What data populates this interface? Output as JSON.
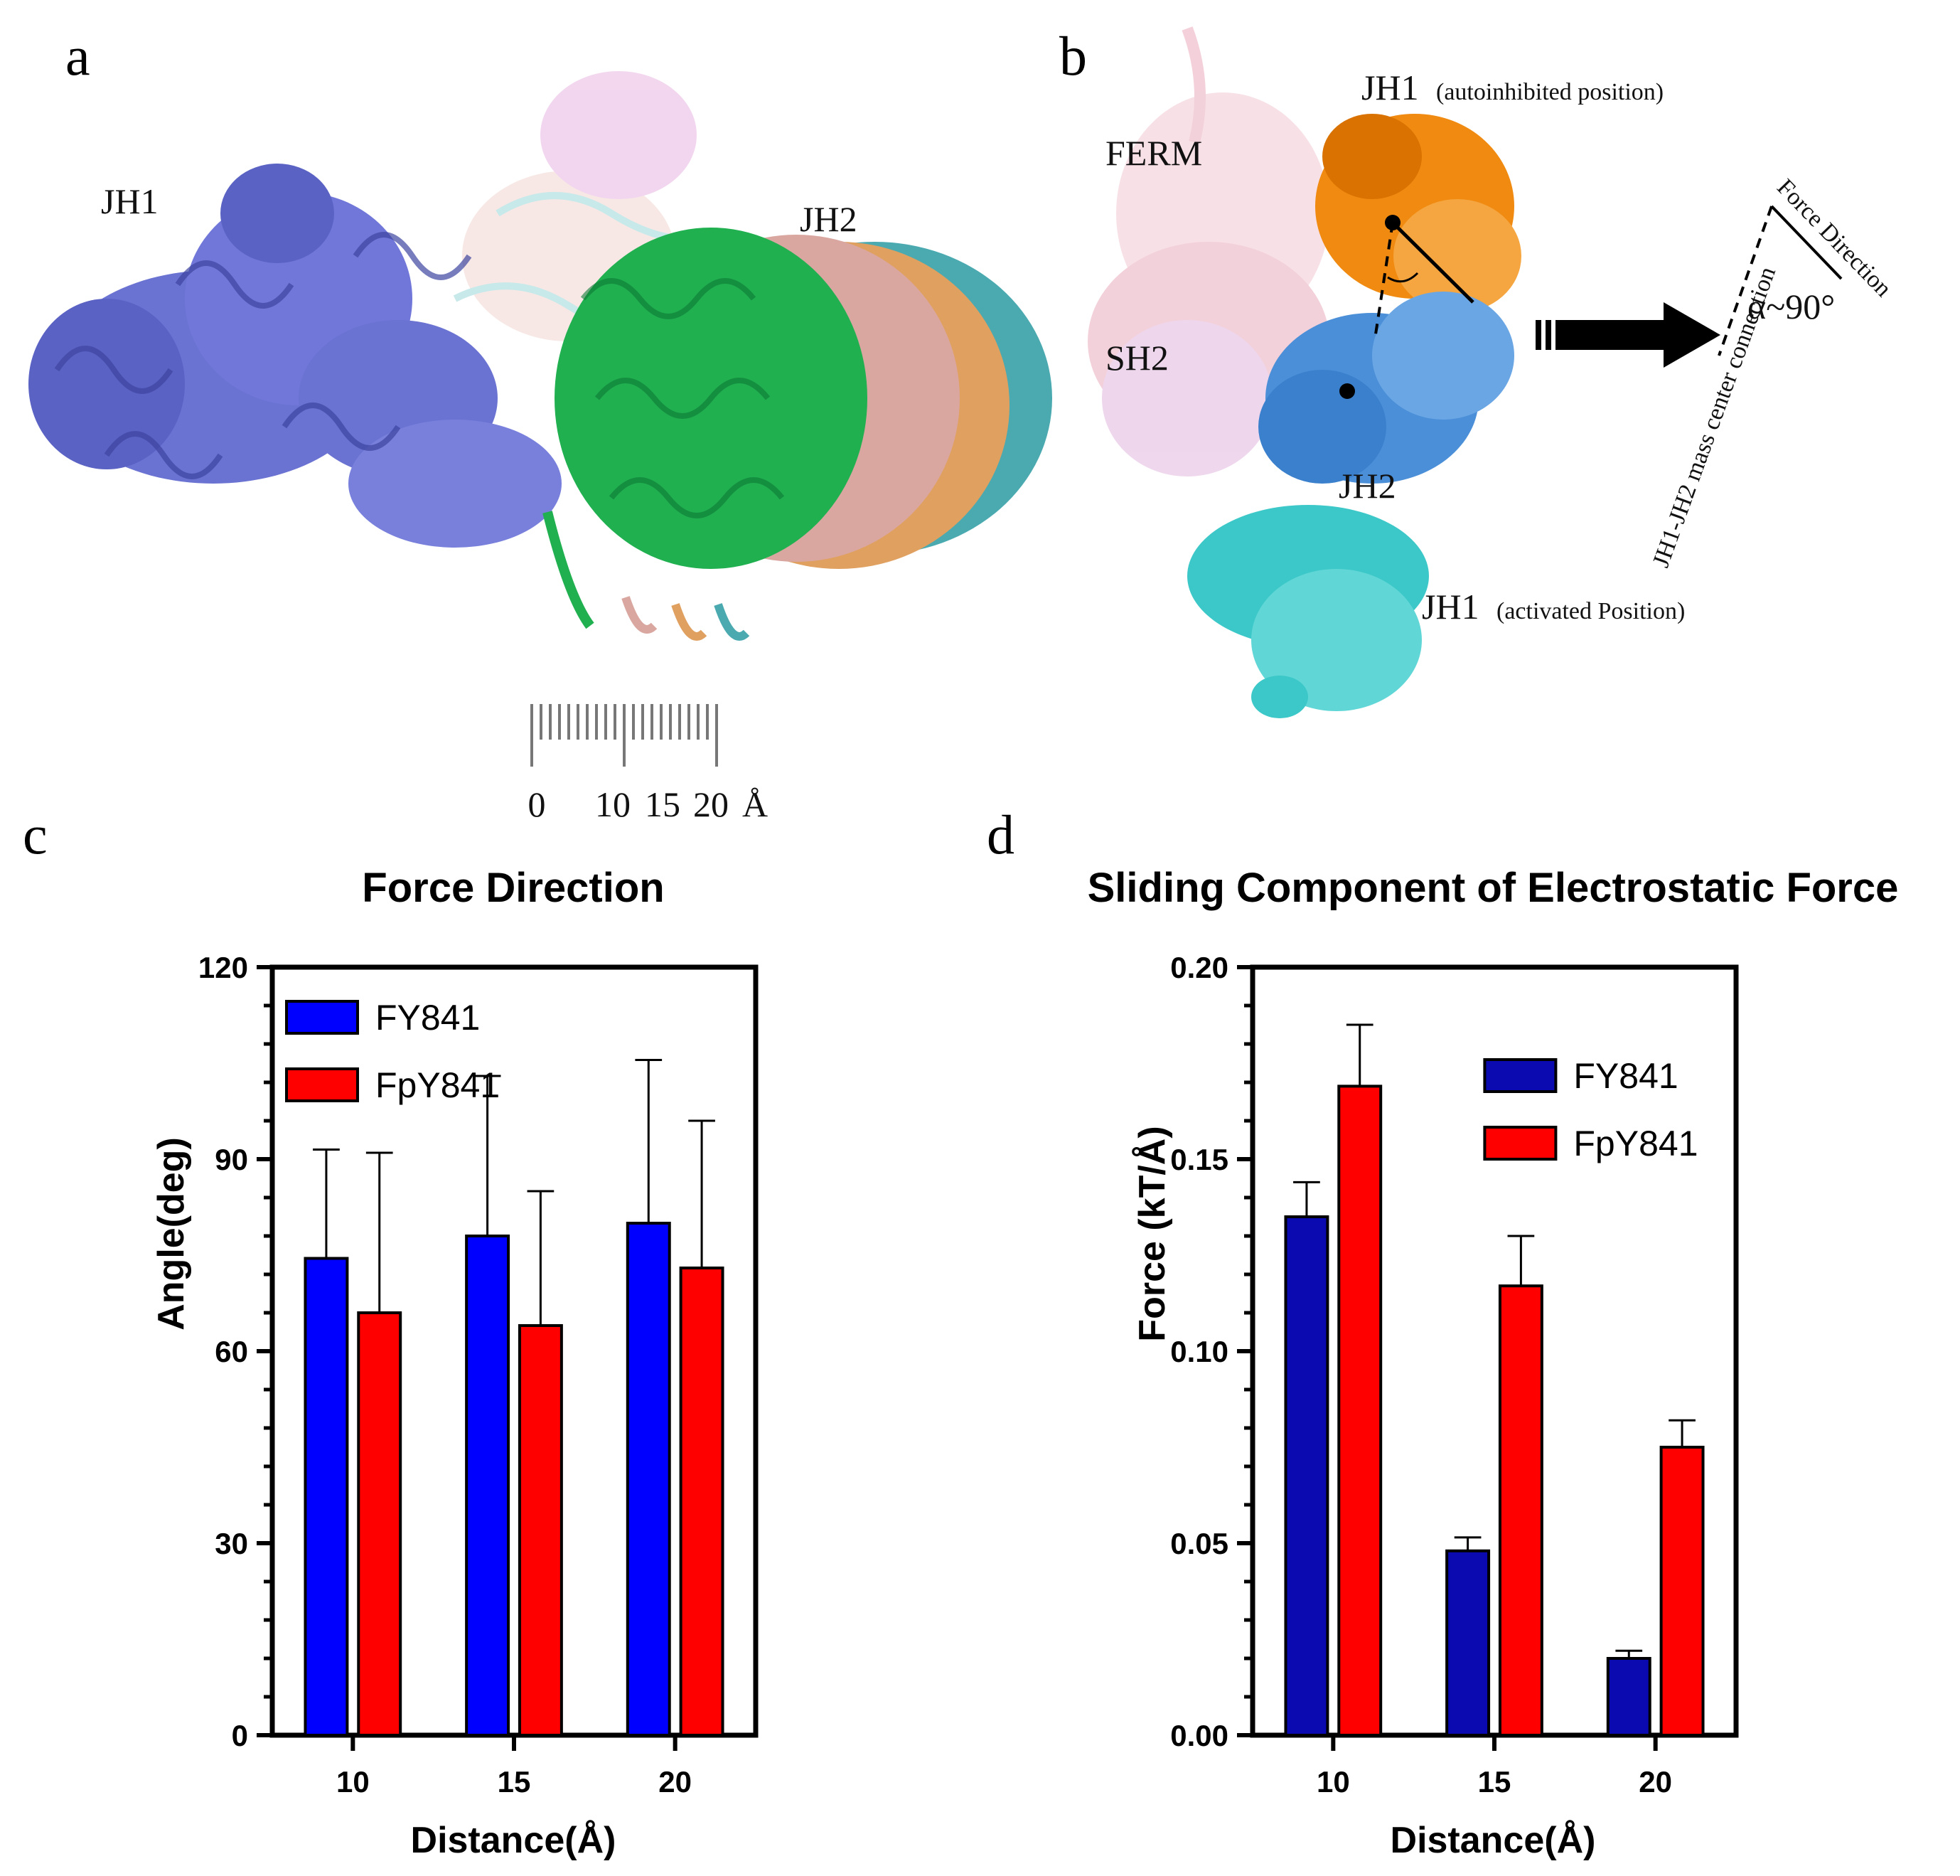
{
  "panels": {
    "a": {
      "letter": "a",
      "labels": {
        "jh1": "JH1",
        "jh2": "JH2"
      },
      "scale": {
        "ticks": [
          "0",
          "10",
          "15",
          "20"
        ],
        "unit": "Å"
      },
      "colors": {
        "jh1": "#6a72d2",
        "green": "#20b050",
        "pink": "#d9a7a0",
        "orange": "#e0a060",
        "teal": "#4aaab0",
        "magenta": "#c070c0"
      }
    },
    "b": {
      "letter": "b",
      "labels": {
        "ferm": "FERM",
        "sh2": "SH2",
        "jh2": "JH2",
        "jh1_auto_main": "JH1",
        "jh1_auto_sub": "(autoinhibited position)",
        "jh1_act_main": "JH1",
        "jh1_act_sub": "(activated Position)",
        "force_direction": "Force Direction",
        "mass_center": "JH1-JH2 mass center connection",
        "alpha": "α~90°"
      },
      "colors": {
        "ferm": "#f2c9d4",
        "sh2": "#e7c2e6",
        "jh2": "#4a8fd8",
        "jh1_auto": "#f08a10",
        "jh1_act": "#3cc8c8"
      }
    },
    "c": {
      "letter": "c"
    },
    "d": {
      "letter": "d"
    }
  },
  "chart_data": [
    {
      "type": "bar",
      "title": "Force Direction",
      "xlabel": "Distance(Å)",
      "ylabel": "Angle(deg)",
      "categories": [
        "10",
        "15",
        "20"
      ],
      "ylim": [
        0,
        120
      ],
      "yticks": [
        "0",
        "30",
        "60",
        "90",
        "120"
      ],
      "legend_position": "top-left",
      "series": [
        {
          "name": "FY841",
          "color": "#0000ff",
          "values": [
            74.5,
            78,
            80
          ],
          "error": [
            17,
            25,
            25.5
          ]
        },
        {
          "name": "FpY841",
          "color": "#ff0000",
          "values": [
            66,
            64,
            73
          ],
          "error": [
            25,
            21,
            23
          ]
        }
      ]
    },
    {
      "type": "bar",
      "title": "Sliding Component of Electrostatic Force",
      "xlabel": "Distance(Å)",
      "ylabel": "Force (kT/Å)",
      "categories": [
        "10",
        "15",
        "20"
      ],
      "ylim": [
        0,
        0.2
      ],
      "yticks": [
        "0.00",
        "0.05",
        "0.10",
        "0.15",
        "0.20"
      ],
      "legend_position": "top-right",
      "series": [
        {
          "name": "FY841",
          "color": "#0a0ab0",
          "values": [
            0.135,
            0.048,
            0.02
          ],
          "error": [
            0.009,
            0.0035,
            0.002
          ]
        },
        {
          "name": "FpY841",
          "color": "#ff0000",
          "values": [
            0.169,
            0.117,
            0.075
          ],
          "error": [
            0.016,
            0.013,
            0.007
          ]
        }
      ]
    }
  ]
}
